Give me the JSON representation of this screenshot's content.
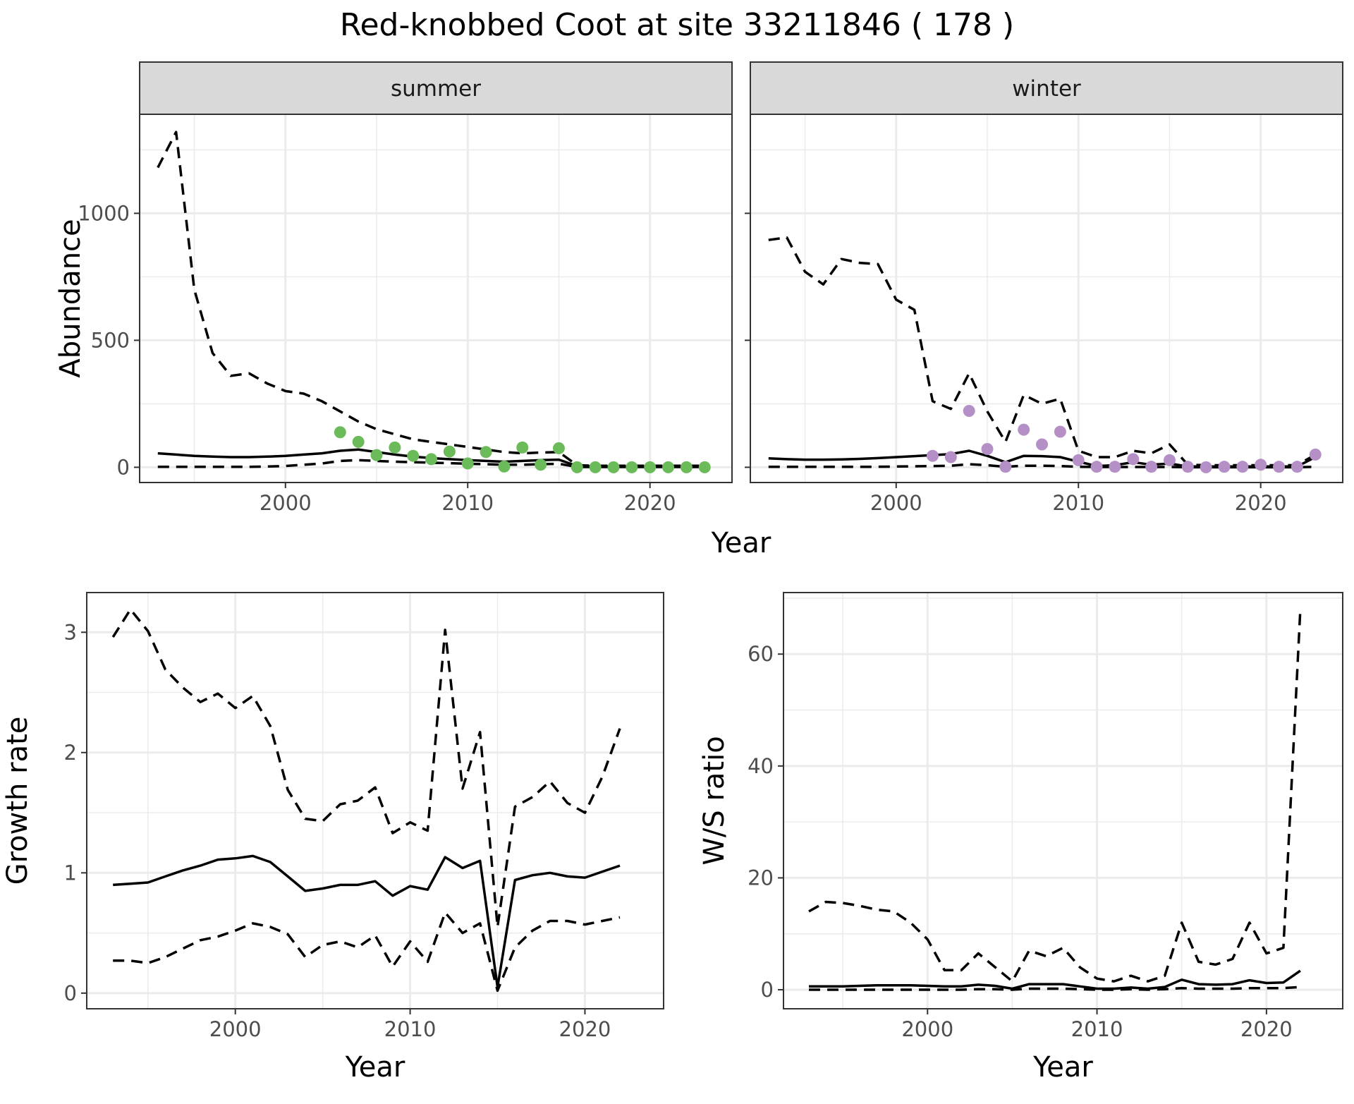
{
  "page_title": "Red-knobbed Coot at site 33211846 ( 178 )",
  "colors": {
    "summer_points": "#6cbb5a",
    "winter_points": "#b490c7",
    "lines": "#000000"
  },
  "chart_data": [
    {
      "type": "line",
      "facet": "summer",
      "xlabel": "Year",
      "ylabel": "Abundance",
      "xlim": [
        1992,
        2024.5
      ],
      "ylim": [
        -60,
        1390
      ],
      "x_ticks": [
        2000,
        2010,
        2020
      ],
      "y_ticks": [
        0,
        500,
        1000
      ],
      "grid": true,
      "series": [
        {
          "style": "solid",
          "x": [
            1993,
            1994,
            1995,
            1996,
            1997,
            1998,
            1999,
            2000,
            2001,
            2002,
            2003,
            2004,
            2005,
            2006,
            2007,
            2008,
            2009,
            2010,
            2011,
            2012,
            2013,
            2014,
            2015,
            2016,
            2017,
            2018,
            2019,
            2020,
            2021,
            2022,
            2023
          ],
          "values": [
            55,
            50,
            45,
            42,
            40,
            40,
            42,
            45,
            50,
            55,
            65,
            70,
            60,
            50,
            42,
            36,
            32,
            28,
            25,
            22,
            25,
            28,
            30,
            5,
            3,
            3,
            3,
            3,
            3,
            3,
            3
          ]
        },
        {
          "style": "dashed",
          "x": [
            1993,
            1994,
            1995,
            1996,
            1997,
            1998,
            1999,
            2000,
            2001,
            2002,
            2003,
            2004,
            2005,
            2006,
            2007,
            2008,
            2009,
            2010,
            2011,
            2012,
            2013,
            2014,
            2015,
            2016,
            2017,
            2018,
            2019,
            2020,
            2021,
            2022,
            2023
          ],
          "values": [
            1180,
            1320,
            700,
            450,
            360,
            370,
            330,
            300,
            290,
            260,
            220,
            180,
            150,
            130,
            110,
            100,
            90,
            80,
            70,
            60,
            55,
            58,
            60,
            8,
            6,
            6,
            6,
            6,
            6,
            6,
            6
          ]
        },
        {
          "style": "dashed",
          "x": [
            1993,
            1994,
            1995,
            1996,
            1997,
            1998,
            1999,
            2000,
            2001,
            2002,
            2003,
            2004,
            2005,
            2006,
            2007,
            2008,
            2009,
            2010,
            2011,
            2012,
            2013,
            2014,
            2015,
            2016,
            2017,
            2018,
            2019,
            2020,
            2021,
            2022,
            2023
          ],
          "values": [
            2,
            2,
            2,
            2,
            2,
            2,
            3,
            5,
            10,
            15,
            25,
            28,
            25,
            22,
            20,
            18,
            16,
            14,
            12,
            10,
            10,
            12,
            14,
            1,
            1,
            1,
            1,
            1,
            1,
            1,
            1
          ]
        },
        {
          "style": "points",
          "color": "#6cbb5a",
          "x": [
            2003,
            2004,
            2005,
            2006,
            2007,
            2008,
            2009,
            2010,
            2011,
            2012,
            2013,
            2014,
            2015,
            2016,
            2017,
            2018,
            2019,
            2020,
            2021,
            2022,
            2023
          ],
          "values": [
            138,
            100,
            48,
            78,
            45,
            32,
            62,
            15,
            60,
            3,
            78,
            10,
            75,
            0,
            0,
            0,
            0,
            0,
            0,
            0,
            0
          ]
        }
      ]
    },
    {
      "type": "line",
      "facet": "winter",
      "xlabel": "Year",
      "ylabel": "Abundance",
      "xlim": [
        1992,
        2024.5
      ],
      "ylim": [
        -60,
        1390
      ],
      "x_ticks": [
        2000,
        2010,
        2020
      ],
      "y_ticks": [
        0,
        500,
        1000
      ],
      "grid": true,
      "series": [
        {
          "style": "solid",
          "x": [
            1993,
            1994,
            1995,
            1996,
            1997,
            1998,
            1999,
            2000,
            2001,
            2002,
            2003,
            2004,
            2005,
            2006,
            2007,
            2008,
            2009,
            2010,
            2011,
            2012,
            2013,
            2014,
            2015,
            2016,
            2017,
            2018,
            2019,
            2020,
            2021,
            2022,
            2023
          ],
          "values": [
            35,
            32,
            30,
            30,
            31,
            33,
            36,
            40,
            44,
            48,
            52,
            65,
            45,
            20,
            45,
            44,
            40,
            22,
            5,
            8,
            20,
            10,
            15,
            3,
            3,
            3,
            3,
            3,
            3,
            3,
            40
          ]
        },
        {
          "style": "dashed",
          "x": [
            1993,
            1994,
            1995,
            1996,
            1997,
            1998,
            1999,
            2000,
            2001,
            2002,
            2003,
            2004,
            2005,
            2006,
            2007,
            2008,
            2009,
            2010,
            2011,
            2012,
            2013,
            2014,
            2015,
            2016,
            2017,
            2018,
            2019,
            2020,
            2021,
            2022,
            2023
          ],
          "values": [
            895,
            905,
            770,
            720,
            820,
            805,
            800,
            660,
            620,
            260,
            230,
            370,
            220,
            100,
            285,
            250,
            270,
            65,
            40,
            40,
            65,
            55,
            90,
            10,
            8,
            8,
            8,
            8,
            8,
            8,
            50
          ]
        },
        {
          "style": "dashed",
          "x": [
            1993,
            1994,
            1995,
            1996,
            1997,
            1998,
            1999,
            2000,
            2001,
            2002,
            2003,
            2004,
            2005,
            2006,
            2007,
            2008,
            2009,
            2010,
            2011,
            2012,
            2013,
            2014,
            2015,
            2016,
            2017,
            2018,
            2019,
            2020,
            2021,
            2022,
            2023
          ],
          "values": [
            2,
            2,
            2,
            2,
            2,
            2,
            2,
            3,
            4,
            5,
            6,
            12,
            8,
            2,
            6,
            6,
            5,
            2,
            1,
            1,
            1,
            1,
            1,
            0,
            0,
            0,
            0,
            0,
            0,
            0,
            2
          ]
        },
        {
          "style": "points",
          "color": "#b490c7",
          "x": [
            2002,
            2003,
            2004,
            2005,
            2006,
            2007,
            2008,
            2009,
            2010,
            2011,
            2012,
            2013,
            2014,
            2015,
            2016,
            2017,
            2018,
            2019,
            2020,
            2021,
            2022,
            2023
          ],
          "values": [
            45,
            40,
            222,
            72,
            2,
            148,
            90,
            140,
            28,
            2,
            2,
            32,
            2,
            28,
            2,
            0,
            2,
            2,
            10,
            2,
            2,
            50
          ]
        }
      ]
    },
    {
      "type": "line",
      "xlabel": "Year",
      "ylabel": "Growth rate",
      "xlim": [
        1991.5,
        2024.5
      ],
      "ylim": [
        -0.13,
        3.33
      ],
      "x_ticks": [
        2000,
        2010,
        2020
      ],
      "y_ticks": [
        0,
        1,
        2,
        3
      ],
      "grid": true,
      "series": [
        {
          "style": "solid",
          "x": [
            1993,
            1994,
            1995,
            1996,
            1997,
            1998,
            1999,
            2000,
            2001,
            2002,
            2003,
            2004,
            2005,
            2006,
            2007,
            2008,
            2009,
            2010,
            2011,
            2012,
            2013,
            2014,
            2015,
            2016,
            2017,
            2018,
            2019,
            2020,
            2021,
            2022
          ],
          "values": [
            0.9,
            0.91,
            0.92,
            0.97,
            1.02,
            1.06,
            1.11,
            1.12,
            1.14,
            1.09,
            0.97,
            0.85,
            0.87,
            0.9,
            0.9,
            0.93,
            0.81,
            0.89,
            0.86,
            1.13,
            1.04,
            1.1,
            0.05,
            0.94,
            0.98,
            1.0,
            0.97,
            0.96,
            1.01,
            1.06
          ]
        },
        {
          "style": "dashed",
          "x": [
            1993,
            1994,
            1995,
            1996,
            1997,
            1998,
            1999,
            2000,
            2001,
            2002,
            2003,
            2004,
            2005,
            2006,
            2007,
            2008,
            2009,
            2010,
            2011,
            2012,
            2013,
            2014,
            2015,
            2016,
            2017,
            2018,
            2019,
            2020,
            2021,
            2022
          ],
          "values": [
            2.96,
            3.19,
            3.01,
            2.69,
            2.54,
            2.42,
            2.49,
            2.37,
            2.47,
            2.22,
            1.69,
            1.45,
            1.43,
            1.57,
            1.6,
            1.71,
            1.33,
            1.42,
            1.35,
            3.02,
            1.7,
            2.17,
            0.55,
            1.55,
            1.63,
            1.76,
            1.58,
            1.5,
            1.8,
            2.2
          ]
        },
        {
          "style": "dashed",
          "x": [
            1993,
            1994,
            1995,
            1996,
            1997,
            1998,
            1999,
            2000,
            2001,
            2002,
            2003,
            2004,
            2005,
            2006,
            2007,
            2008,
            2009,
            2010,
            2011,
            2012,
            2013,
            2014,
            2015,
            2016,
            2017,
            2018,
            2019,
            2020,
            2021,
            2022
          ],
          "values": [
            0.27,
            0.27,
            0.25,
            0.3,
            0.37,
            0.44,
            0.47,
            0.52,
            0.58,
            0.55,
            0.49,
            0.3,
            0.4,
            0.43,
            0.38,
            0.48,
            0.22,
            0.43,
            0.26,
            0.67,
            0.5,
            0.58,
            0.02,
            0.38,
            0.52,
            0.6,
            0.6,
            0.57,
            0.6,
            0.63
          ]
        }
      ]
    },
    {
      "type": "line",
      "xlabel": "Year",
      "ylabel": "W/S ratio",
      "xlim": [
        1991.5,
        2024.5
      ],
      "ylim": [
        -3.4,
        71
      ],
      "x_ticks": [
        2000,
        2010,
        2020
      ],
      "y_ticks": [
        0,
        20,
        40,
        60
      ],
      "grid": true,
      "series": [
        {
          "style": "solid",
          "x": [
            1993,
            1994,
            1995,
            1996,
            1997,
            1998,
            1999,
            2000,
            2001,
            2002,
            2003,
            2004,
            2005,
            2006,
            2007,
            2008,
            2009,
            2010,
            2011,
            2012,
            2013,
            2014,
            2015,
            2016,
            2017,
            2018,
            2019,
            2020,
            2021,
            2022
          ],
          "values": [
            0.6,
            0.6,
            0.6,
            0.7,
            0.8,
            0.8,
            0.8,
            0.7,
            0.6,
            0.6,
            0.9,
            0.7,
            0.2,
            1.0,
            1.0,
            1.0,
            0.6,
            0.2,
            0.2,
            0.4,
            0.2,
            0.5,
            1.8,
            1.0,
            0.9,
            1.0,
            1.7,
            1.2,
            1.3,
            3.4
          ]
        },
        {
          "style": "dashed",
          "x": [
            1993,
            1994,
            1995,
            1996,
            1997,
            1998,
            1999,
            2000,
            2001,
            2002,
            2003,
            2004,
            2005,
            2006,
            2007,
            2008,
            2009,
            2010,
            2011,
            2012,
            2013,
            2014,
            2015,
            2016,
            2017,
            2018,
            2019,
            2020,
            2021,
            2022
          ],
          "values": [
            14,
            15.7,
            15.5,
            15,
            14.3,
            14,
            12,
            9,
            3.5,
            3.5,
            6.5,
            4,
            1.5,
            7,
            6,
            7.5,
            4,
            2,
            1.5,
            2.5,
            1.5,
            2.5,
            12,
            5,
            4.5,
            5.5,
            12,
            6.5,
            7.5,
            68
          ]
        },
        {
          "style": "dashed",
          "x": [
            1993,
            1994,
            1995,
            1996,
            1997,
            1998,
            1999,
            2000,
            2001,
            2002,
            2003,
            2004,
            2005,
            2006,
            2007,
            2008,
            2009,
            2010,
            2011,
            2012,
            2013,
            2014,
            2015,
            2016,
            2017,
            2018,
            2019,
            2020,
            2021,
            2022
          ],
          "values": [
            0,
            0,
            0,
            0,
            0,
            0,
            0,
            0,
            0,
            0,
            0.1,
            0.1,
            0,
            0.2,
            0.2,
            0.2,
            0.1,
            0,
            0,
            0.1,
            0,
            0.1,
            0.3,
            0.2,
            0.2,
            0.2,
            0.3,
            0.3,
            0.3,
            0.5
          ]
        }
      ]
    }
  ]
}
